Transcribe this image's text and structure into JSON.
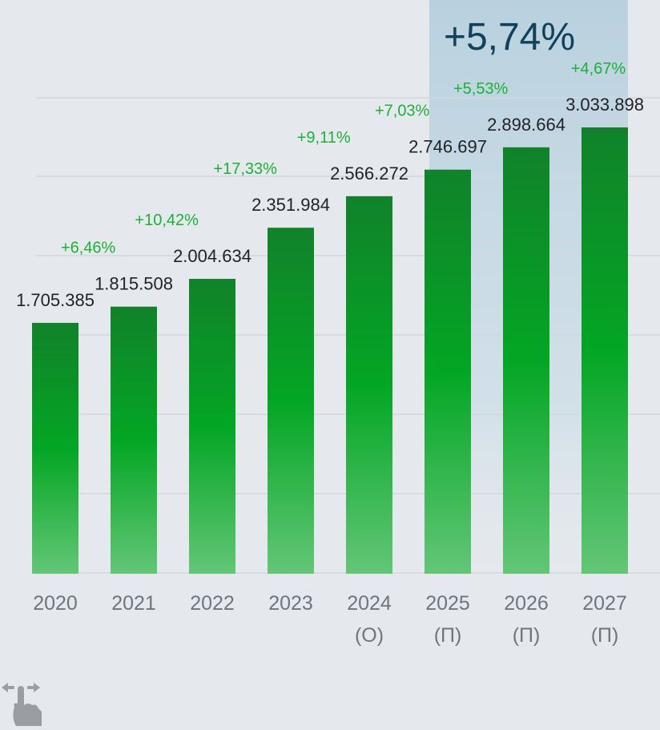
{
  "chart_data": {
    "type": "bar",
    "categories": [
      [
        "2020"
      ],
      [
        "2021"
      ],
      [
        "2022"
      ],
      [
        "2023"
      ],
      [
        "2024",
        "(O)"
      ],
      [
        "2025",
        "(П)"
      ],
      [
        "2026",
        "(П)"
      ],
      [
        "2027",
        "(П)"
      ]
    ],
    "values": [
      1705385,
      1815508,
      2004634,
      2351984,
      2566272,
      2746697,
      2898664,
      3033898
    ],
    "value_labels": [
      "1.705.385",
      "1.815.508",
      "2.004.634",
      "2.351.984",
      "2.566.272",
      "2.746.697",
      "2.898.664",
      "3.033.898"
    ],
    "growth_labels": [
      "+6,46%",
      "+10,42%",
      "+17,33%",
      "+9,11%",
      "+7,03%",
      "+5,53%",
      "+4,67%"
    ],
    "highlight": {
      "label": "+5,74%",
      "from_category": "2025",
      "to_category": "2027"
    },
    "grid": true,
    "legend": "none"
  },
  "colors": {
    "background": "#e5e9ed",
    "bar_top": "#11822a",
    "bar_mid": "#03a624",
    "bar_bottom": "#63c677",
    "growth_text": "#1bb133",
    "highlight_band": "#b9d1df",
    "highlight_text": "#11425a",
    "grid": "#d3d7db"
  },
  "icons": {
    "swipe": "swipe-horizontal-icon"
  }
}
